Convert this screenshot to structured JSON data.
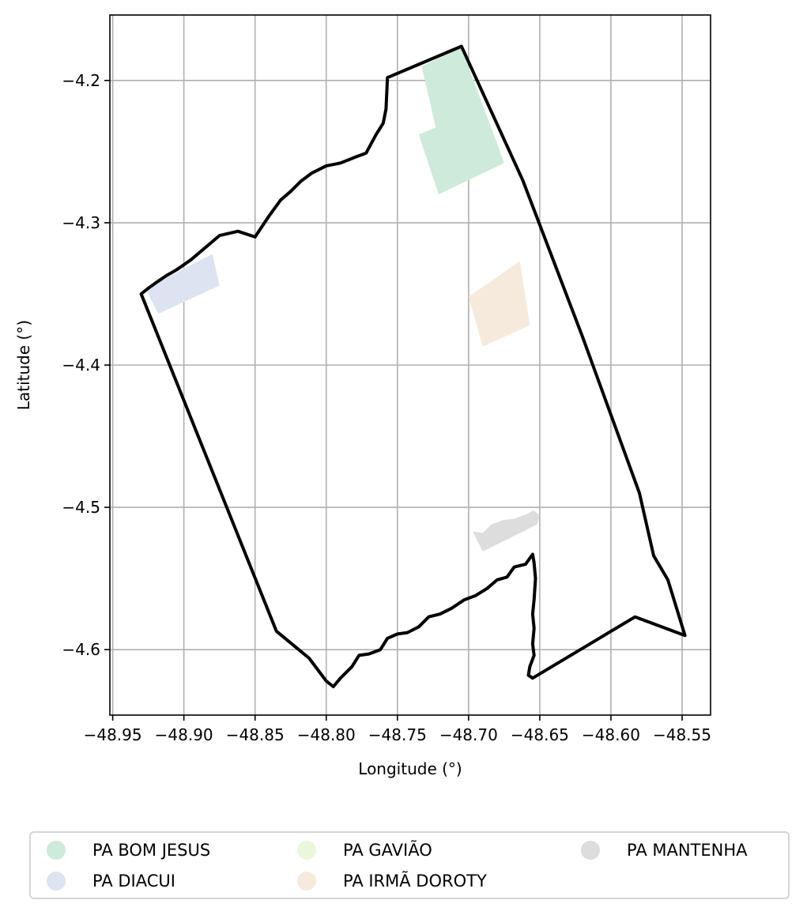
{
  "chart_data": {
    "type": "map",
    "xlabel": "Longitude (°)",
    "ylabel": "Latitude (°)",
    "xlim": [
      -48.952,
      -48.53
    ],
    "ylim": [
      -4.646,
      -4.154
    ],
    "x_ticks": [
      -48.95,
      -48.9,
      -48.85,
      -48.8,
      -48.75,
      -48.7,
      -48.65,
      -48.6,
      -48.55
    ],
    "x_tick_labels": [
      "−48.95",
      "−48.90",
      "−48.85",
      "−48.80",
      "−48.75",
      "−48.70",
      "−48.65",
      "−48.60",
      "−48.55"
    ],
    "y_ticks": [
      -4.2,
      -4.3,
      -4.4,
      -4.5,
      -4.6
    ],
    "y_tick_labels": [
      "−4.2",
      "−4.3",
      "−4.4",
      "−4.5",
      "−4.6"
    ],
    "grid": true,
    "legend_position": "bottom",
    "boundary": {
      "color": "#000000",
      "coords": [
        [
          -48.757,
          -4.198
        ],
        [
          -48.705,
          -4.176
        ],
        [
          -48.662,
          -4.27
        ],
        [
          -48.62,
          -4.38
        ],
        [
          -48.58,
          -4.49
        ],
        [
          -48.57,
          -4.534
        ],
        [
          -48.56,
          -4.551
        ],
        [
          -48.548,
          -4.59
        ],
        [
          -48.583,
          -4.577
        ],
        [
          -48.655,
          -4.62
        ],
        [
          -48.658,
          -4.618
        ],
        [
          -48.657,
          -4.612
        ],
        [
          -48.654,
          -4.604
        ],
        [
          -48.655,
          -4.596
        ],
        [
          -48.654,
          -4.585
        ],
        [
          -48.655,
          -4.575
        ],
        [
          -48.654,
          -4.565
        ],
        [
          -48.653,
          -4.55
        ],
        [
          -48.654,
          -4.539
        ],
        [
          -48.655,
          -4.533
        ],
        [
          -48.66,
          -4.54
        ],
        [
          -48.668,
          -4.542
        ],
        [
          -48.673,
          -4.549
        ],
        [
          -48.68,
          -4.551
        ],
        [
          -48.687,
          -4.557
        ],
        [
          -48.695,
          -4.562
        ],
        [
          -48.703,
          -4.565
        ],
        [
          -48.712,
          -4.571
        ],
        [
          -48.72,
          -4.575
        ],
        [
          -48.728,
          -4.577
        ],
        [
          -48.735,
          -4.584
        ],
        [
          -48.743,
          -4.588
        ],
        [
          -48.75,
          -4.589
        ],
        [
          -48.757,
          -4.592
        ],
        [
          -48.762,
          -4.6
        ],
        [
          -48.77,
          -4.603
        ],
        [
          -48.777,
          -4.604
        ],
        [
          -48.782,
          -4.612
        ],
        [
          -48.79,
          -4.62
        ],
        [
          -48.795,
          -4.626
        ],
        [
          -48.8,
          -4.622
        ],
        [
          -48.812,
          -4.606
        ],
        [
          -48.835,
          -4.587
        ],
        [
          -48.93,
          -4.35
        ],
        [
          -48.925,
          -4.346
        ],
        [
          -48.918,
          -4.341
        ],
        [
          -48.912,
          -4.337
        ],
        [
          -48.905,
          -4.333
        ],
        [
          -48.895,
          -4.326
        ],
        [
          -48.875,
          -4.309
        ],
        [
          -48.862,
          -4.306
        ],
        [
          -48.85,
          -4.31
        ],
        [
          -48.84,
          -4.295
        ],
        [
          -48.832,
          -4.284
        ],
        [
          -48.825,
          -4.278
        ],
        [
          -48.818,
          -4.271
        ],
        [
          -48.81,
          -4.265
        ],
        [
          -48.8,
          -4.26
        ],
        [
          -48.79,
          -4.258
        ],
        [
          -48.78,
          -4.254
        ],
        [
          -48.772,
          -4.251
        ],
        [
          -48.765,
          -4.238
        ],
        [
          -48.76,
          -4.23
        ],
        [
          -48.758,
          -4.22
        ],
        [
          -48.757,
          -4.198
        ]
      ]
    },
    "series": [
      {
        "name": "PA BOM JESUS",
        "color": "#cdeadb",
        "coords": [
          [
            -48.733,
            -4.19
          ],
          [
            -48.705,
            -4.177
          ],
          [
            -48.675,
            -4.258
          ],
          [
            -48.721,
            -4.28
          ],
          [
            -48.735,
            -4.238
          ],
          [
            -48.723,
            -4.233
          ]
        ]
      },
      {
        "name": "PA DIACUI",
        "color": "#dee3f2",
        "coords": [
          [
            -48.927,
            -4.346
          ],
          [
            -48.88,
            -4.322
          ],
          [
            -48.875,
            -4.344
          ],
          [
            -48.918,
            -4.364
          ]
        ]
      },
      {
        "name": "PA GAVIÃO",
        "color": "#eaf7db",
        "coords": []
      },
      {
        "name": "PA IRMÃ DOROTY",
        "color": "#f6eadc",
        "coords": [
          [
            -48.7,
            -4.352
          ],
          [
            -48.664,
            -4.327
          ],
          [
            -48.657,
            -4.372
          ],
          [
            -48.69,
            -4.387
          ]
        ]
      },
      {
        "name": "PA MANTENHA",
        "color": "#dddddd",
        "coords": [
          [
            -48.697,
            -4.517
          ],
          [
            -48.69,
            -4.518
          ],
          [
            -48.684,
            -4.512
          ],
          [
            -48.676,
            -4.509
          ],
          [
            -48.668,
            -4.508
          ],
          [
            -48.66,
            -4.505
          ],
          [
            -48.654,
            -4.502
          ],
          [
            -48.65,
            -4.506
          ],
          [
            -48.652,
            -4.512
          ],
          [
            -48.69,
            -4.531
          ]
        ]
      }
    ]
  }
}
